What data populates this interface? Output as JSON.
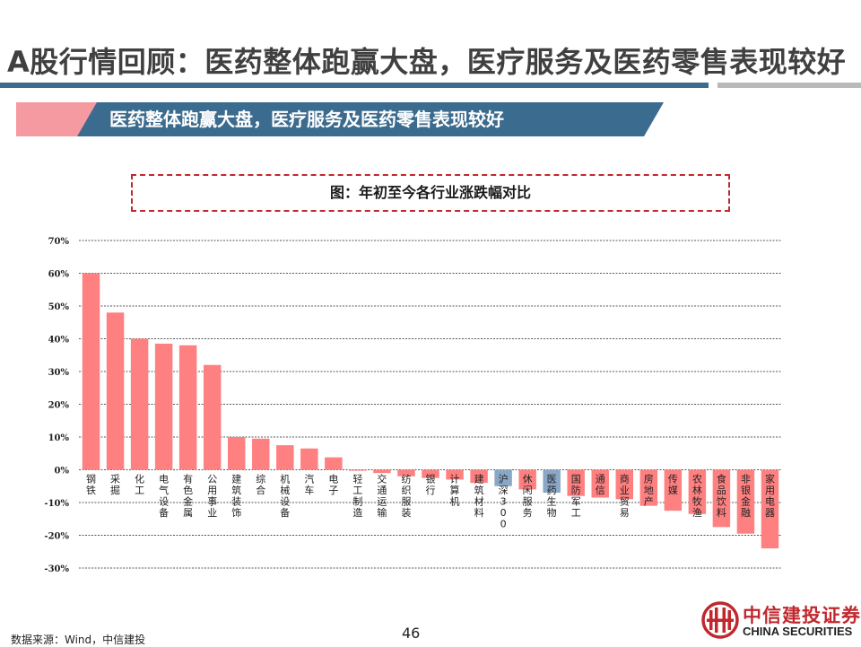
{
  "page": {
    "title": "A股行情回顾：医药整体跑赢大盘，医疗服务及医药零售表现较好",
    "banner": "医药整体跑赢大盘，医疗服务及医药零售表现较好",
    "chart_caption": "图：年初至今各行业涨跌幅对比",
    "source": "数据来源：Wind，中信建投",
    "page_number": "46"
  },
  "logo": {
    "name_cn": "中信建投证券",
    "name_en": "CHINA SECURITIES"
  },
  "colors": {
    "bar_default": "#ff8080",
    "bar_highlight": "#8aa8c6",
    "accent_blue": "#3b6b8e",
    "accent_pink": "#f59aa0",
    "brand_red": "#c0282d"
  },
  "chart_data": {
    "type": "bar",
    "title": "图：年初至今各行业涨跌幅对比",
    "xlabel": "",
    "ylabel": "",
    "ylim": [
      -30,
      70
    ],
    "yticks": [
      "70%",
      "60%",
      "50%",
      "40%",
      "30%",
      "20%",
      "10%",
      "0%",
      "-10%",
      "-20%",
      "-30%"
    ],
    "ytick_values": [
      70,
      60,
      50,
      40,
      30,
      20,
      10,
      0,
      -10,
      -20,
      -30
    ],
    "grid": true,
    "highlighted_categories": [
      "沪深300",
      "医药生物"
    ],
    "categories": [
      "钢铁",
      "采掘",
      "化工",
      "电气设备",
      "有色金属",
      "公用事业",
      "建筑装饰",
      "综合",
      "机械设备",
      "汽车",
      "电子",
      "轻工制造",
      "交通运输",
      "纺织服装",
      "银行",
      "计算机",
      "建筑材料",
      "沪深300",
      "休闲服务",
      "医药生物",
      "国防军工",
      "通信",
      "商业贸易",
      "房地产",
      "传媒",
      "农林牧渔",
      "食品饮料",
      "非银金融",
      "家用电器"
    ],
    "values": [
      60,
      48,
      40,
      38.5,
      38,
      32,
      10,
      9.5,
      7.5,
      6.5,
      3.8,
      -0.3,
      -1,
      -2,
      -2.5,
      -3,
      -4,
      -5,
      -6,
      -7,
      -8,
      -8.5,
      -9,
      -11,
      -12.5,
      -13.5,
      -17.5,
      -19.5,
      -24
    ]
  }
}
